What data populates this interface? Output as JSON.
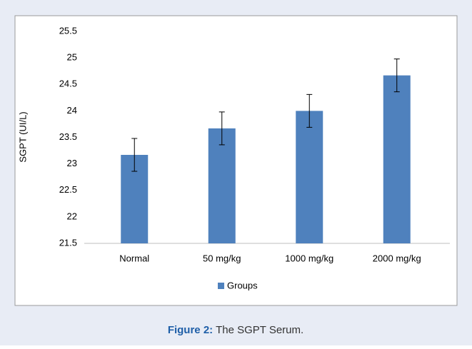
{
  "chart_data": {
    "type": "bar",
    "y_label": "SGPT (UI/L)",
    "categories": [
      "Normal",
      "50 mg/kg",
      "1000 mg/kg",
      "2000 mg/kg"
    ],
    "series": [
      {
        "name": "Groups",
        "color": "#4f81bd",
        "values": [
          23.17,
          23.67,
          24.0,
          24.67
        ],
        "errors": [
          0.31,
          0.31,
          0.31,
          0.31
        ]
      }
    ],
    "ylim": [
      21.5,
      25.5
    ],
    "yticks": [
      21.5,
      22,
      22.5,
      23,
      23.5,
      24,
      24.5,
      25,
      25.5
    ],
    "grid": false,
    "legend": "bottom"
  },
  "caption": {
    "label": "Figure 2:",
    "text": "The SGPT Serum."
  }
}
